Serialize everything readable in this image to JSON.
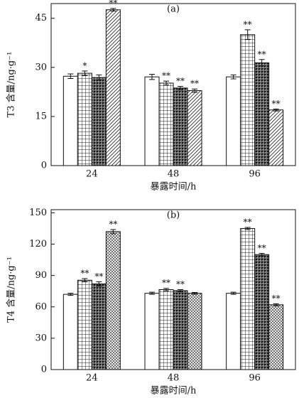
{
  "chart_data": [
    {
      "type": "bar",
      "title": "(a)",
      "xlabel": "暴露时间/h",
      "ylabel": "T3 含量/ng·g⁻¹",
      "categories": [
        "24",
        "48",
        "96"
      ],
      "series": [
        {
          "color": "#ffffff",
          "pattern": "none",
          "values": [
            27.3,
            27.1,
            27.1
          ],
          "errors": [
            0.7,
            0.8,
            0.6
          ],
          "annotations": [
            null,
            null,
            null
          ]
        },
        {
          "color": "#ffffff",
          "pattern": "grid",
          "values": [
            28.2,
            25.2,
            40.0
          ],
          "errors": [
            0.7,
            0.6,
            1.5
          ],
          "annotations": [
            "*",
            "**",
            "**"
          ]
        },
        {
          "color": "#555555",
          "pattern": "dots",
          "values": [
            26.9,
            23.7,
            31.4
          ],
          "errors": [
            0.8,
            0.5,
            1.0
          ],
          "annotations": [
            null,
            "**",
            "**"
          ]
        },
        {
          "color": "#ffffff",
          "pattern": "diagonal",
          "values": [
            47.6,
            22.9,
            17.0
          ],
          "errors": [
            0.4,
            0.5,
            0.3
          ],
          "annotations": [
            "**",
            "**",
            "**"
          ]
        }
      ],
      "ylim": [
        0,
        49.5
      ],
      "yticks": [
        0,
        15,
        30,
        45
      ]
    },
    {
      "type": "bar",
      "title": "(b)",
      "xlabel": "暴露时间/h",
      "ylabel": "T4 含量/ng·g⁻¹",
      "categories": [
        "24",
        "48",
        "96"
      ],
      "series": [
        {
          "color": "#ffffff",
          "pattern": "none",
          "values": [
            72,
            73,
            73
          ],
          "errors": [
            1.0,
            1.0,
            1.0
          ],
          "annotations": [
            null,
            null,
            null
          ]
        },
        {
          "color": "#ffffff",
          "pattern": "grid",
          "values": [
            85.5,
            76.5,
            135
          ],
          "errors": [
            1.5,
            1.2,
            1.0
          ],
          "annotations": [
            "**",
            "**",
            "**"
          ]
        },
        {
          "color": "#555555",
          "pattern": "dots",
          "values": [
            82,
            75.5,
            110
          ],
          "errors": [
            2.0,
            1.0,
            1.2
          ],
          "annotations": [
            "**",
            "**",
            "**"
          ]
        },
        {
          "color": "#ffffff",
          "pattern": "crosshatch",
          "values": [
            132,
            73,
            62
          ],
          "errors": [
            2.0,
            0.8,
            1.0
          ],
          "annotations": [
            "**",
            null,
            "**"
          ]
        }
      ],
      "ylim": [
        0,
        153
      ],
      "yticks": [
        0,
        30,
        60,
        90,
        120,
        150
      ]
    }
  ]
}
